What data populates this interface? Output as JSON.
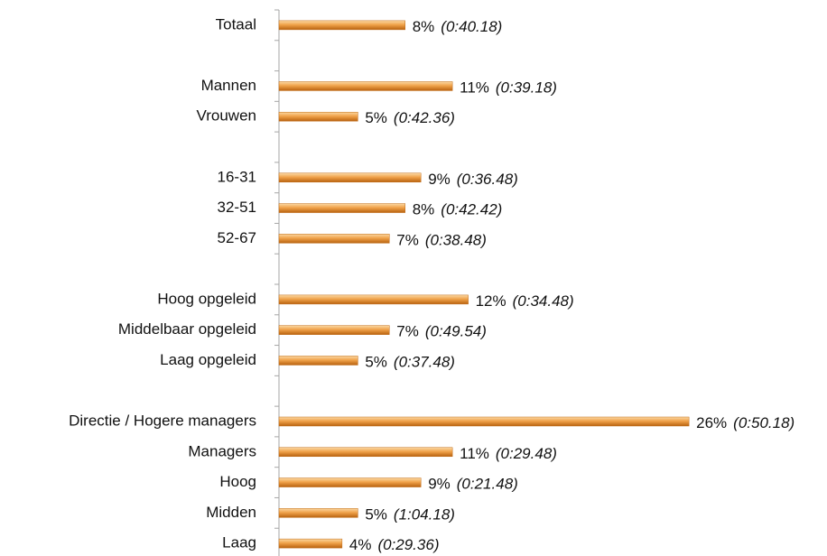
{
  "chart_data": {
    "type": "bar",
    "orientation": "horizontal",
    "categories": [
      "Totaal",
      null,
      "Mannen",
      "Vrouwen",
      null,
      "16-31",
      "32-51",
      "52-67",
      null,
      "Hoog opgeleid",
      "Middelbaar opgeleid",
      "Laag opgeleid",
      null,
      "Directie / Hogere managers",
      "Managers",
      "Hoog",
      "Midden",
      "Laag"
    ],
    "values": [
      8,
      null,
      11,
      5,
      null,
      9,
      8,
      7,
      null,
      12,
      7,
      5,
      null,
      26,
      11,
      9,
      5,
      4
    ],
    "value_labels": [
      "8%",
      null,
      "11%",
      "5%",
      null,
      "9%",
      "8%",
      "7%",
      null,
      "12%",
      "7%",
      "5%",
      null,
      "26%",
      "11%",
      "9%",
      "5%",
      "4%"
    ],
    "times": [
      "(0:40.18)",
      null,
      "(0:39.18)",
      "(0:42.36)",
      null,
      "(0:36.48)",
      "(0:42.42)",
      "(0:38.48)",
      null,
      "(0:34.48)",
      "(0:49.54)",
      "(0:37.48)",
      null,
      "(0:50.18)",
      "(0:29.48)",
      "(0:21.48)",
      "(1:04.18)",
      "(0:29.36)"
    ],
    "color": "#e8942e",
    "xlim": [
      0,
      30
    ]
  }
}
